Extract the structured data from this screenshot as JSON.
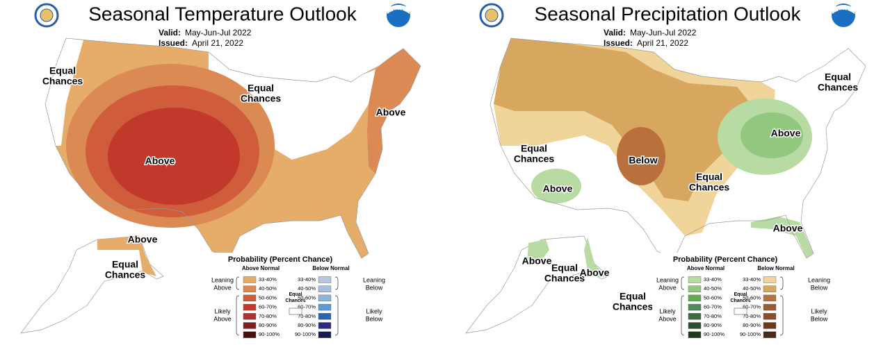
{
  "panels": [
    {
      "title": "Seasonal Temperature Outlook",
      "valid_label": "Valid:",
      "valid": "May-Jun-Jul 2022",
      "issued_label": "Issued:",
      "issued": "April 21, 2022",
      "logo_text": "NOAA",
      "regions": [
        {
          "lines": [
            "Equal",
            "Chances"
          ]
        },
        {
          "lines": [
            "Equal",
            "Chances"
          ]
        },
        {
          "lines": [
            "Above"
          ]
        },
        {
          "lines": [
            "Above"
          ]
        },
        {
          "lines": [
            "Above"
          ]
        },
        {
          "lines": [
            "Equal",
            "Chances"
          ]
        }
      ],
      "legend": {
        "title": "Probability (Percent Chance)",
        "above": {
          "header": "Above Normal",
          "rows": [
            {
              "label": "33-40%",
              "color": "#e5ac6a"
            },
            {
              "label": "40-50%",
              "color": "#da8a52"
            },
            {
              "label": "50-60%",
              "color": "#cf5c3a"
            },
            {
              "label": "60-70%",
              "color": "#c0392b"
            },
            {
              "label": "70-80%",
              "color": "#b03030"
            },
            {
              "label": "80-90%",
              "color": "#7d1f1f"
            },
            {
              "label": "90-100%",
              "color": "#4a1010"
            }
          ]
        },
        "below": {
          "header": "Below Normal",
          "rows": [
            {
              "label": "33-40%",
              "color": "#b8c6df"
            },
            {
              "label": "40-50%",
              "color": "#a6bfe0"
            },
            {
              "label": "50-60%",
              "color": "#8ab4e0"
            },
            {
              "label": "60-70%",
              "color": "#5b9bd5"
            },
            {
              "label": "70-80%",
              "color": "#2a64b0"
            },
            {
              "label": "80-90%",
              "color": "#2a2a80"
            },
            {
              "label": "90-100%",
              "color": "#1a1a50"
            }
          ]
        },
        "leaning_above": [
          "Leaning",
          "Above"
        ],
        "likely_above": [
          "Likely",
          "Above"
        ],
        "equal_chances": [
          "Equal",
          "Chances"
        ],
        "leaning_below": [
          "Leaning",
          "Below"
        ],
        "likely_below": [
          "Likely",
          "Below"
        ]
      }
    },
    {
      "title": "Seasonal Precipitation Outlook",
      "valid_label": "Valid:",
      "valid": "May-Jun-Jul 2022",
      "issued_label": "Issued:",
      "issued": "April 21, 2022",
      "logo_text": "NOAA",
      "regions": [
        {
          "lines": [
            "Equal",
            "Chances"
          ]
        },
        {
          "lines": [
            "Above"
          ]
        },
        {
          "lines": [
            "Equal",
            "Chances"
          ]
        },
        {
          "lines": [
            "Above"
          ]
        },
        {
          "lines": [
            "Below"
          ]
        },
        {
          "lines": [
            "Equal",
            "Chances"
          ]
        },
        {
          "lines": [
            "Above"
          ]
        },
        {
          "lines": [
            "Above"
          ]
        },
        {
          "lines": [
            "Equal",
            "Chances"
          ]
        },
        {
          "lines": [
            "Above"
          ]
        },
        {
          "lines": [
            "Equal",
            "Chances"
          ]
        }
      ],
      "legend": {
        "title": "Probability (Percent Chance)",
        "above": {
          "header": "Above Normal",
          "rows": [
            {
              "label": "33-40%",
              "color": "#b7dba2"
            },
            {
              "label": "40-50%",
              "color": "#91c77e"
            },
            {
              "label": "50-60%",
              "color": "#5fae4e"
            },
            {
              "label": "60-70%",
              "color": "#4e8a5a"
            },
            {
              "label": "70-80%",
              "color": "#3b6b43"
            },
            {
              "label": "80-90%",
              "color": "#2c4e30"
            },
            {
              "label": "90-100%",
              "color": "#1d3a1d"
            }
          ]
        },
        "below": {
          "header": "Below Normal",
          "rows": [
            {
              "label": "33-40%",
              "color": "#f1d49a"
            },
            {
              "label": "40-50%",
              "color": "#d7a75f"
            },
            {
              "label": "50-60%",
              "color": "#b9703d"
            },
            {
              "label": "60-70%",
              "color": "#9b5a34"
            },
            {
              "label": "70-80%",
              "color": "#8a4d2a"
            },
            {
              "label": "80-90%",
              "color": "#6b3a18"
            },
            {
              "label": "90-100%",
              "color": "#4a2a14"
            }
          ]
        },
        "leaning_above": [
          "Leaning",
          "Above"
        ],
        "likely_above": [
          "Likely",
          "Above"
        ],
        "equal_chances": [
          "Equal",
          "Chances"
        ],
        "leaning_below": [
          "Leaning",
          "Below"
        ],
        "likely_below": [
          "Likely",
          "Below"
        ]
      }
    }
  ]
}
